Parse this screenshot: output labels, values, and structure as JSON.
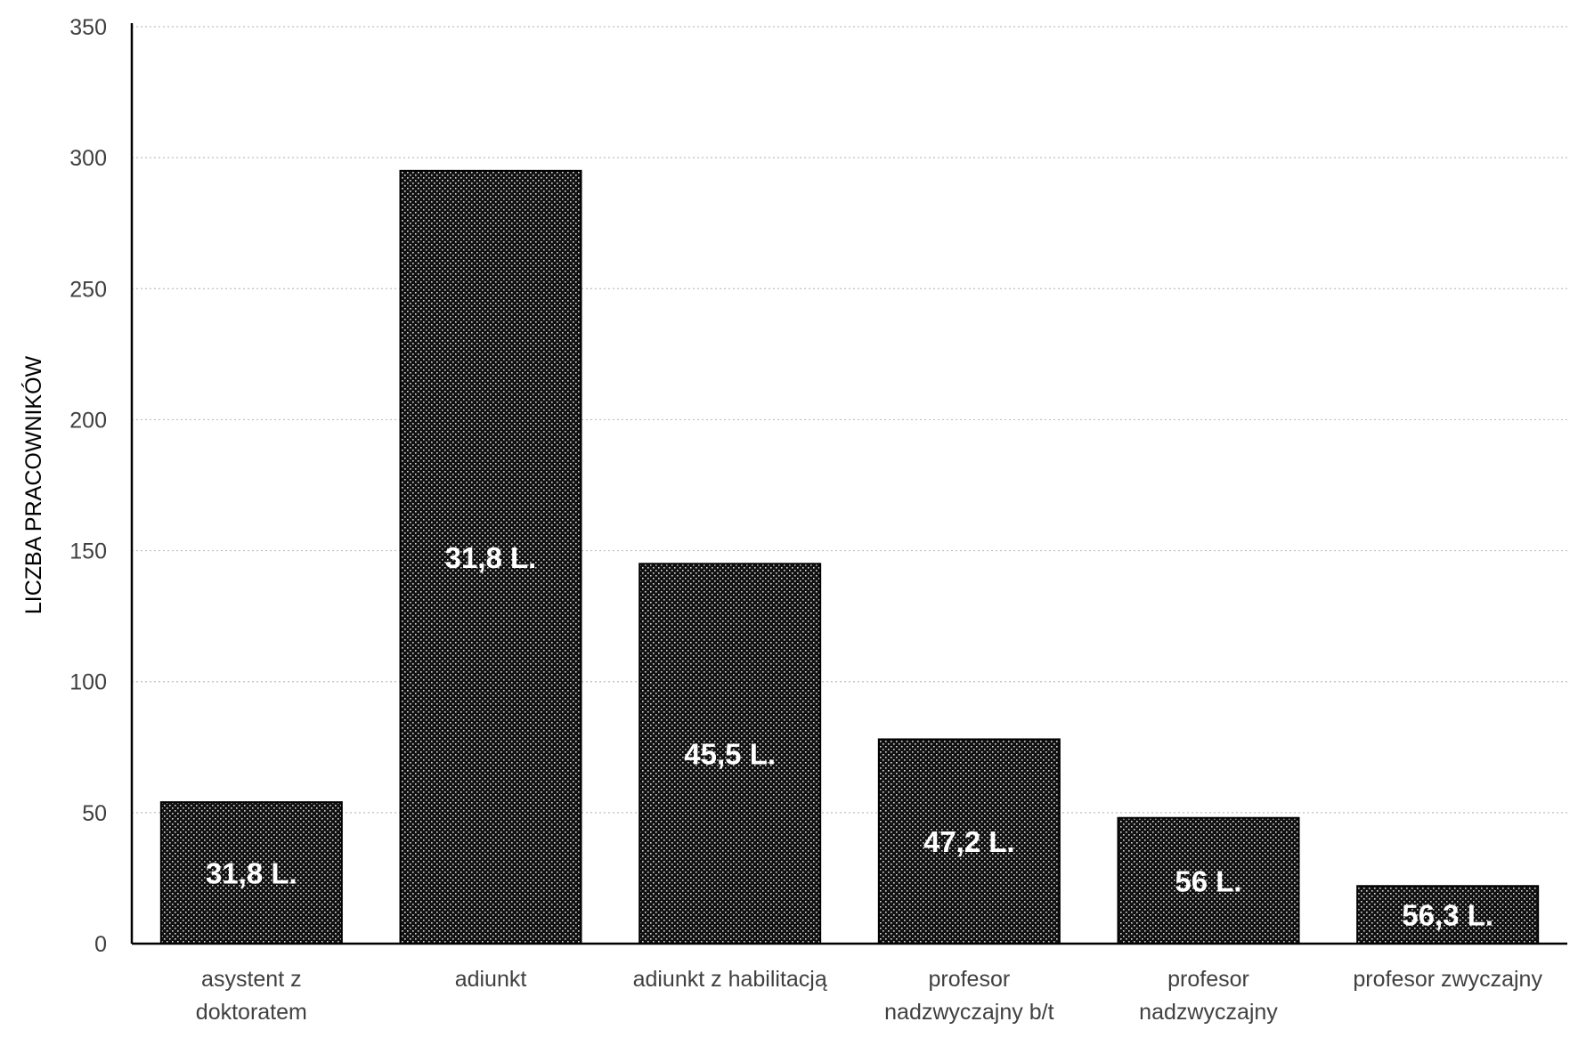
{
  "chart_data": {
    "type": "bar",
    "ylabel": "LICZBA PRACOWNIKÓW",
    "xlabel": "",
    "ylim": [
      0,
      350
    ],
    "yticks": [
      0,
      50,
      100,
      150,
      200,
      250,
      300,
      350
    ],
    "grid": true,
    "categories": [
      [
        "asystent z",
        "doktoratem"
      ],
      [
        "adiunkt"
      ],
      [
        "adiunkt z habilitacją"
      ],
      [
        "profesor",
        "nadzwyczajny b/t"
      ],
      [
        "profesor",
        "nadzwyczajny"
      ],
      [
        "profesor zwyczajny"
      ]
    ],
    "values": [
      54,
      295,
      145,
      78,
      48,
      22
    ],
    "data_labels": [
      "31,8 L.",
      "31,8 L.",
      "45,5 L.",
      "47,2 L.",
      "56 L.",
      "56,3 L."
    ],
    "colors": {
      "bar_fill": "#111111",
      "bar_dot": "#ffffff",
      "grid": "#bfbfbf",
      "axis": "#000000",
      "tick_text": "#404040"
    }
  }
}
